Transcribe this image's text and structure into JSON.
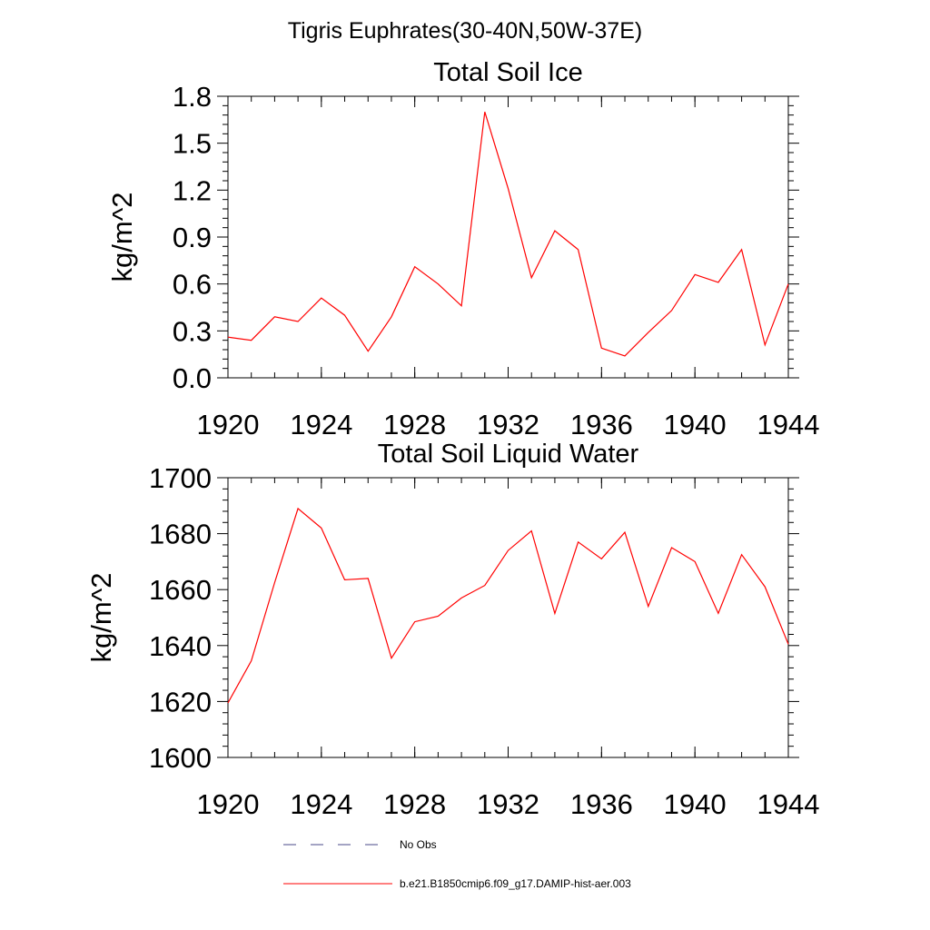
{
  "page_title": "Tigris Euphrates(30-40N,50W-37E)",
  "chart_data": [
    {
      "type": "line",
      "title": "Total Soil Ice",
      "xlabel": "",
      "ylabel": "kg/m^2",
      "xlim": [
        1920,
        1944
      ],
      "ylim": [
        0,
        1.8
      ],
      "x_ticks": [
        "1920",
        "1924",
        "1928",
        "1932",
        "1936",
        "1940",
        "1944"
      ],
      "y_ticks": [
        "0.0",
        "0.3",
        "0.6",
        "0.9",
        "1.2",
        "1.5",
        "1.8"
      ],
      "series": [
        {
          "name": "b.e21.B1850cmip6.f09_g17.DAMIP-hist-aer.003",
          "color": "#ff0000",
          "x": [
            1920,
            1921,
            1922,
            1923,
            1924,
            1925,
            1926,
            1927,
            1928,
            1929,
            1930,
            1931,
            1932,
            1933,
            1934,
            1935,
            1936,
            1937,
            1938,
            1939,
            1940,
            1941,
            1942,
            1943,
            1944
          ],
          "values": [
            0.26,
            0.24,
            0.39,
            0.36,
            0.51,
            0.4,
            0.17,
            0.39,
            0.71,
            0.6,
            0.46,
            1.7,
            1.21,
            0.64,
            0.94,
            0.82,
            0.19,
            0.14,
            0.29,
            0.43,
            0.66,
            0.61,
            0.82,
            0.21,
            0.6
          ]
        }
      ]
    },
    {
      "type": "line",
      "title": "Total Soil Liquid Water",
      "xlabel": "",
      "ylabel": "kg/m^2",
      "xlim": [
        1920,
        1944
      ],
      "ylim": [
        1600,
        1700
      ],
      "x_ticks": [
        "1920",
        "1924",
        "1928",
        "1932",
        "1936",
        "1940",
        "1944"
      ],
      "y_ticks": [
        "1600",
        "1620",
        "1640",
        "1660",
        "1680",
        "1700"
      ],
      "series": [
        {
          "name": "b.e21.B1850cmip6.f09_g17.DAMIP-hist-aer.003",
          "color": "#ff0000",
          "x": [
            1920,
            1921,
            1922,
            1923,
            1924,
            1925,
            1926,
            1927,
            1928,
            1929,
            1930,
            1931,
            1932,
            1933,
            1934,
            1935,
            1936,
            1937,
            1938,
            1939,
            1940,
            1941,
            1942,
            1943,
            1944
          ],
          "values": [
            1619.5,
            1634.5,
            1662.5,
            1689.0,
            1682.0,
            1663.5,
            1664.0,
            1635.5,
            1648.5,
            1650.5,
            1657.0,
            1661.5,
            1674.0,
            1681.0,
            1651.5,
            1677.0,
            1671.0,
            1680.5,
            1654.0,
            1675.0,
            1670.0,
            1651.5,
            1672.5,
            1661.0,
            1640.5
          ]
        }
      ]
    }
  ],
  "legend": [
    {
      "label": "No Obs",
      "color": "#4a4a8a",
      "style": "dashed"
    },
    {
      "label": "b.e21.B1850cmip6.f09_g17.DAMIP-hist-aer.003",
      "color": "#ff0000",
      "style": "solid"
    }
  ]
}
